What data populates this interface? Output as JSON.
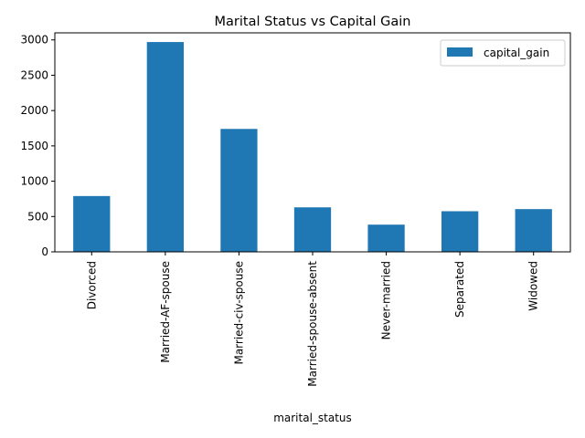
{
  "chart_data": {
    "type": "bar",
    "title": "Marital Status vs Capital Gain",
    "xlabel": "marital_status",
    "ylabel": "",
    "categories": [
      "Divorced",
      "Married-AF-spouse",
      "Married-civ-spouse",
      "Married-spouse-absent",
      "Never-married",
      "Separated",
      "Widowed"
    ],
    "series": [
      {
        "name": "capital_gain",
        "values": [
          790,
          2970,
          1740,
          630,
          385,
          575,
          605
        ],
        "color": "#1f77b4"
      }
    ],
    "ylim": [
      0,
      3100
    ],
    "yticks": [
      0,
      500,
      1000,
      1500,
      2000,
      2500,
      3000
    ],
    "grid": false,
    "legend": "top-right"
  }
}
